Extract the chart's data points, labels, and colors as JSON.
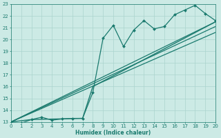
{
  "xlabel": "Humidex (Indice chaleur)",
  "xlim": [
    0,
    20
  ],
  "ylim": [
    13,
    23
  ],
  "xticks": [
    0,
    1,
    2,
    3,
    4,
    5,
    6,
    7,
    8,
    9,
    10,
    11,
    12,
    13,
    14,
    15,
    16,
    17,
    18,
    19,
    20
  ],
  "yticks": [
    13,
    14,
    15,
    16,
    17,
    18,
    19,
    20,
    21,
    22,
    23
  ],
  "bg_color": "#cceae5",
  "grid_color": "#aad4ce",
  "line_color": "#1a7a6e",
  "series": [
    {
      "x": [
        0,
        1,
        2,
        3,
        4,
        5,
        6,
        7,
        8,
        9,
        10,
        11,
        12,
        13,
        14,
        15,
        16,
        17,
        18,
        19,
        20
      ],
      "y": [
        13.0,
        12.9,
        13.2,
        13.4,
        13.15,
        13.25,
        13.3,
        13.3,
        15.5,
        20.1,
        21.2,
        19.4,
        20.8,
        21.6,
        20.9,
        21.1,
        22.1,
        22.5,
        22.9,
        22.2,
        21.6
      ],
      "marker": "D",
      "markersize": 2.0,
      "linewidth": 0.9
    },
    {
      "x": [
        0,
        2,
        7,
        8,
        20
      ],
      "y": [
        13.0,
        13.2,
        13.3,
        16.0,
        21.5
      ],
      "marker": null,
      "linewidth": 1.0
    },
    {
      "x": [
        0,
        20
      ],
      "y": [
        13.0,
        21.5
      ],
      "marker": null,
      "linewidth": 0.9
    },
    {
      "x": [
        0,
        20
      ],
      "y": [
        13.0,
        21.1
      ],
      "marker": null,
      "linewidth": 0.9
    },
    {
      "x": [
        0,
        20
      ],
      "y": [
        13.0,
        20.6
      ],
      "marker": null,
      "linewidth": 0.9
    }
  ]
}
